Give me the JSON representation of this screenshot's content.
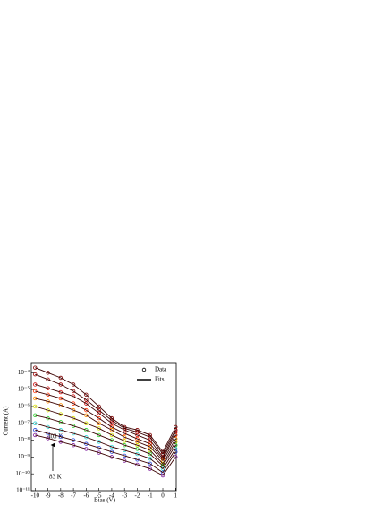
{
  "chart_data": {
    "type": "scatter-fit",
    "x_label": "Bias (V)",
    "y_label": "Current (A)",
    "x": [
      -10,
      -9,
      -8,
      -7,
      -6,
      -5,
      -4,
      -3,
      -2,
      -1,
      0,
      1
    ],
    "xlim": [
      -10.3,
      1.05
    ],
    "xticks": [
      -10,
      -9,
      -8,
      -7,
      -6,
      -5,
      -4,
      -3,
      -2,
      -1,
      0,
      1
    ],
    "ylim": [
      1e-11,
      0.0004
    ],
    "log_y": true,
    "yticks": [
      {
        "value": 1e-11,
        "label": "10⁻¹¹"
      },
      {
        "value": 1e-10,
        "label": "10⁻¹⁰"
      },
      {
        "value": 1e-09,
        "label": "10⁻⁹"
      },
      {
        "value": 1e-08,
        "label": "10⁻⁸"
      },
      {
        "value": 1e-07,
        "label": "10⁻⁷"
      },
      {
        "value": 1e-06,
        "label": "10⁻⁶"
      },
      {
        "value": 1e-05,
        "label": "10⁻⁵"
      },
      {
        "value": 0.0001,
        "label": "10⁻⁴"
      }
    ],
    "fit_color": "#3a0000",
    "series": [
      {
        "color": "#7f0000",
        "values": [
          0.0002,
          0.0001,
          5e-05,
          2e-05,
          5e-06,
          1e-06,
          2e-07,
          6e-08,
          4e-08,
          2e-08,
          2e-09,
          6e-08
        ]
      },
      {
        "color": "#a00000",
        "values": [
          8e-05,
          4e-05,
          2e-05,
          8e-06,
          2.5e-06,
          6e-07,
          1.5e-07,
          5e-08,
          3e-08,
          1.5e-08,
          1.5e-09,
          4e-08
        ]
      },
      {
        "color": "#d01010",
        "values": [
          2e-05,
          1.2e-05,
          7e-06,
          4e-06,
          1.5e-06,
          4e-07,
          1e-07,
          4e-08,
          2e-08,
          1e-08,
          1e-09,
          3e-08
        ]
      },
      {
        "color": "#ff3000",
        "values": [
          8e-06,
          5e-06,
          3e-06,
          1.5e-06,
          6e-07,
          2e-07,
          6e-08,
          2.5e-08,
          1.2e-08,
          6e-09,
          8e-10,
          2e-08
        ]
      },
      {
        "color": "#ff8c00",
        "values": [
          3e-06,
          2e-06,
          1.2e-06,
          6e-07,
          3e-07,
          1e-07,
          4e-08,
          1.5e-08,
          8e-09,
          4e-09,
          6e-10,
          1.2e-08
        ]
      },
      {
        "color": "#d8e000",
        "values": [
          1e-06,
          6e-07,
          3.5e-07,
          2e-07,
          1e-07,
          5e-08,
          2e-08,
          9e-09,
          5e-09,
          2.5e-09,
          4e-10,
          8e-09
        ]
      },
      {
        "color": "#30d030",
        "values": [
          3e-07,
          2e-07,
          1.2e-07,
          7e-08,
          4e-08,
          2e-08,
          1e-08,
          5e-09,
          3e-09,
          1.5e-09,
          3e-10,
          5e-09
        ]
      },
      {
        "color": "#30d8d8",
        "values": [
          1e-07,
          6e-08,
          4e-08,
          2.5e-08,
          1.5e-08,
          8e-09,
          4e-09,
          2.5e-09,
          1.5e-09,
          8e-10,
          2e-10,
          3e-09
        ]
      },
      {
        "color": "#3050e0",
        "values": [
          4e-08,
          2.5e-08,
          1.6e-08,
          1e-08,
          6e-09,
          3.5e-09,
          2e-09,
          1.2e-09,
          7e-10,
          4e-10,
          1.2e-10,
          2e-09
        ]
      },
      {
        "color": "#8020a0",
        "values": [
          2e-08,
          1.3e-08,
          8e-09,
          5e-09,
          3e-09,
          1.8e-09,
          1e-09,
          6e-10,
          3.5e-10,
          2e-10,
          8e-11,
          1e-09
        ]
      }
    ],
    "legend": {
      "corner": "upper right",
      "items": [
        {
          "label": "Data",
          "marker": "circle"
        },
        {
          "label": "Fits",
          "marker": "line"
        }
      ]
    },
    "annotations": [
      "403 K",
      "83 K"
    ]
  }
}
